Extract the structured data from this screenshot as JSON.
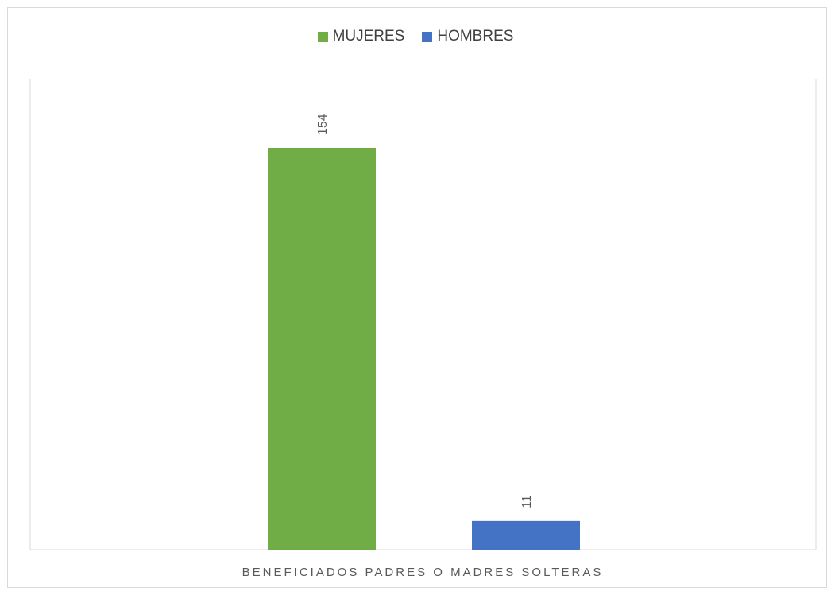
{
  "chart_data": {
    "type": "bar",
    "categories": [
      "BENEFICIADOS PADRES O MADRES SOLTERAS"
    ],
    "series": [
      {
        "name": "MUJERES",
        "values": [
          154
        ],
        "color": "#70AD47"
      },
      {
        "name": "HOMBRES",
        "values": [
          11
        ],
        "color": "#4472C4"
      }
    ],
    "title": "",
    "xlabel": "",
    "ylabel": "",
    "ylim": [
      0,
      180
    ],
    "grid": false,
    "legend_position": "top",
    "data_labels": true
  }
}
